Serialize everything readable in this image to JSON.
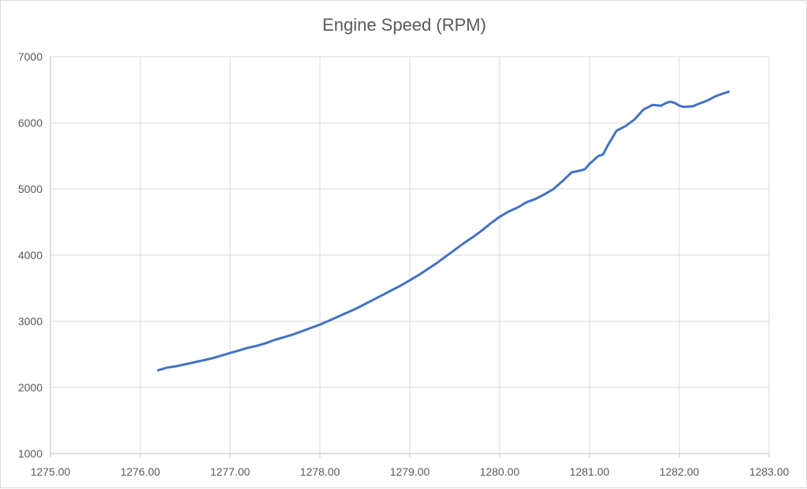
{
  "chart_data": {
    "type": "line",
    "title": "Engine Speed (RPM)",
    "xlabel": "",
    "ylabel": "",
    "xlim": [
      1275.0,
      1283.0
    ],
    "ylim": [
      1000,
      7000
    ],
    "x_ticks": [
      "1275.00",
      "1276.00",
      "1277.00",
      "1278.00",
      "1279.00",
      "1280.00",
      "1281.00",
      "1282.00",
      "1283.00"
    ],
    "y_ticks": [
      "1000",
      "2000",
      "3000",
      "4000",
      "5000",
      "6000",
      "7000"
    ],
    "grid": true,
    "legend": "none",
    "colors": {
      "series": "#4472c4",
      "grid": "#d9d9d9",
      "axis": "#bfbfbf",
      "text": "#595959"
    },
    "series": [
      {
        "name": "",
        "x": [
          1276.2,
          1276.3,
          1276.4,
          1276.5,
          1276.6,
          1276.7,
          1276.8,
          1276.9,
          1277.0,
          1277.1,
          1277.2,
          1277.3,
          1277.4,
          1277.5,
          1277.6,
          1277.7,
          1277.8,
          1277.9,
          1278.0,
          1278.1,
          1278.2,
          1278.3,
          1278.4,
          1278.5,
          1278.6,
          1278.7,
          1278.8,
          1278.9,
          1279.0,
          1279.1,
          1279.2,
          1279.3,
          1279.4,
          1279.5,
          1279.6,
          1279.7,
          1279.8,
          1279.9,
          1280.0,
          1280.1,
          1280.2,
          1280.3,
          1280.4,
          1280.5,
          1280.6,
          1280.7,
          1280.8,
          1280.9,
          1280.95,
          1281.0,
          1281.1,
          1281.15,
          1281.2,
          1281.3,
          1281.4,
          1281.5,
          1281.6,
          1281.7,
          1281.8,
          1281.85,
          1281.9,
          1281.95,
          1282.0,
          1282.05,
          1282.15,
          1282.2,
          1282.3,
          1282.4,
          1282.5,
          1282.55
        ],
        "values": [
          2260,
          2300,
          2320,
          2350,
          2380,
          2410,
          2440,
          2480,
          2520,
          2560,
          2600,
          2630,
          2670,
          2720,
          2760,
          2800,
          2850,
          2900,
          2950,
          3010,
          3070,
          3130,
          3190,
          3260,
          3330,
          3400,
          3470,
          3540,
          3620,
          3700,
          3790,
          3880,
          3980,
          4080,
          4180,
          4270,
          4370,
          4480,
          4580,
          4660,
          4720,
          4800,
          4850,
          4920,
          5000,
          5120,
          5250,
          5280,
          5300,
          5380,
          5500,
          5520,
          5650,
          5880,
          5950,
          6050,
          6200,
          6270,
          6260,
          6300,
          6320,
          6300,
          6260,
          6240,
          6250,
          6280,
          6330,
          6400,
          6450,
          6470
        ]
      }
    ]
  }
}
